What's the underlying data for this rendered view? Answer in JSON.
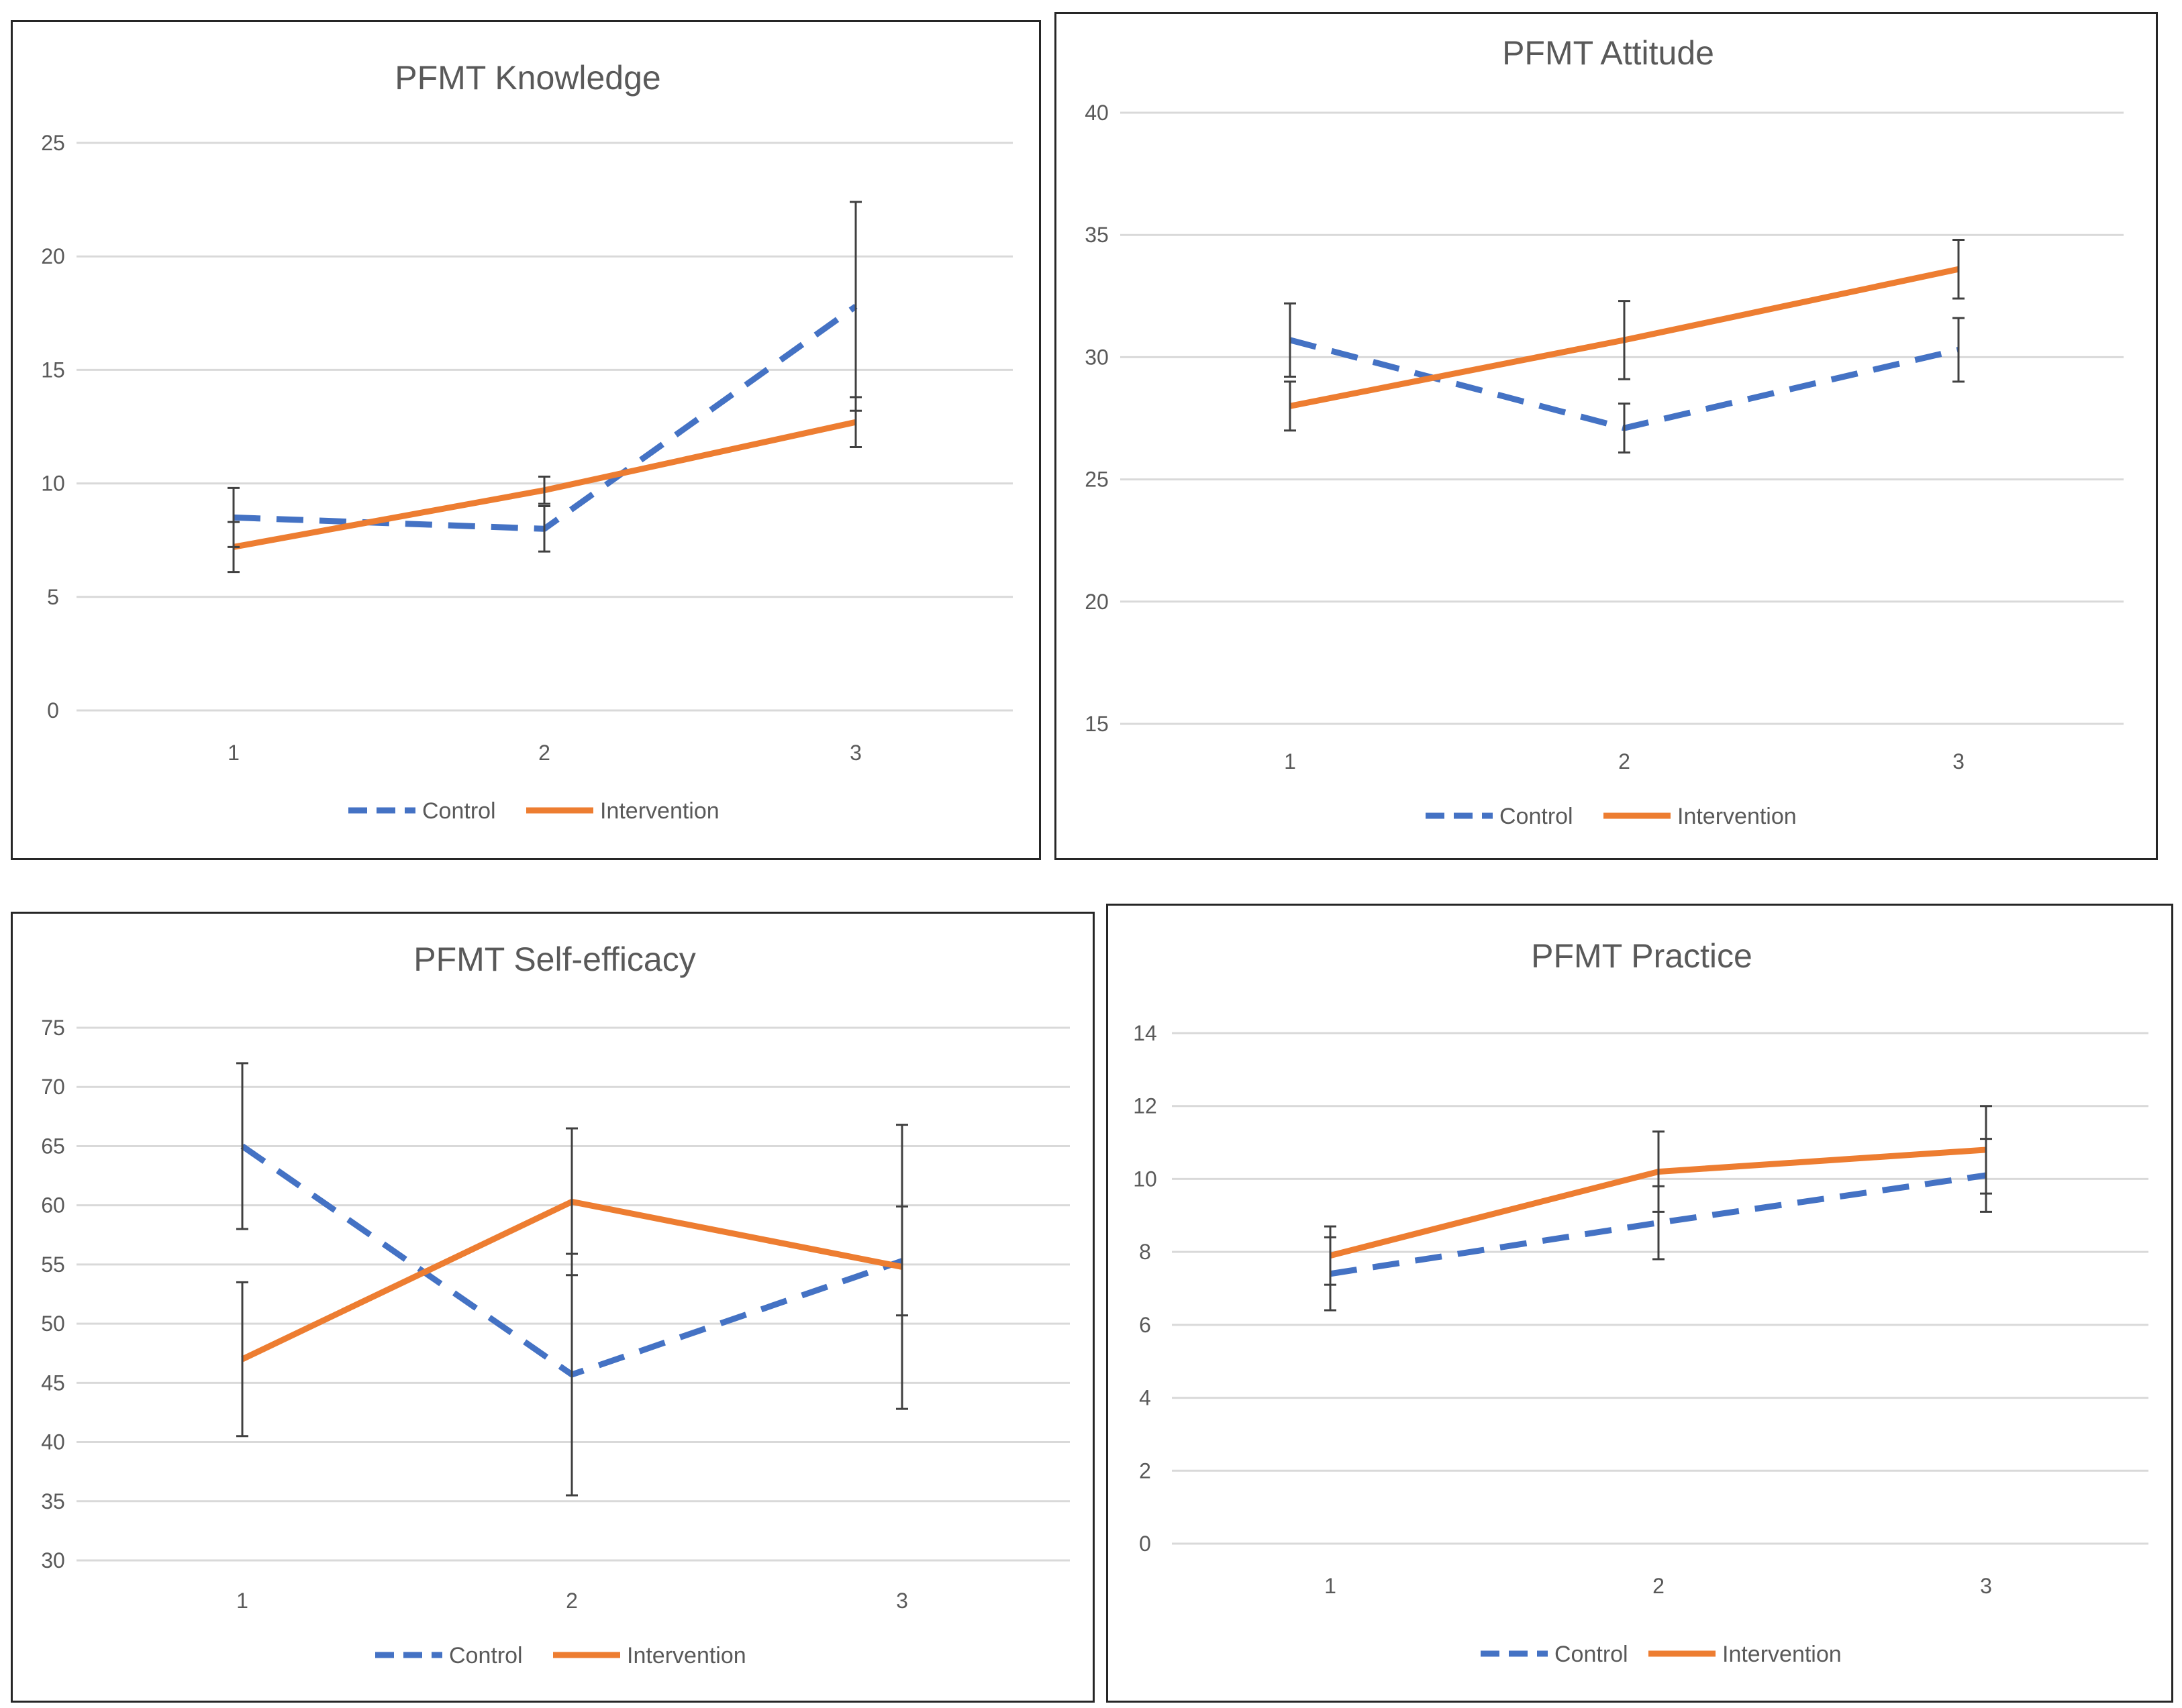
{
  "colors": {
    "control": "#4472C4",
    "intervention": "#ED7D31",
    "grid": "#D9D9D9",
    "errorbar": "#404040",
    "text": "#595959"
  },
  "legend": {
    "control_label": "Control",
    "intervention_label": "Intervention"
  },
  "chart_data": [
    {
      "type": "line",
      "title": "PFMT Knowledge",
      "categories": [
        "1",
        "2",
        "3"
      ],
      "ylim": [
        0,
        25
      ],
      "yticks": [
        0,
        5,
        10,
        15,
        20,
        25
      ],
      "series": [
        {
          "name": "Control",
          "values": [
            8.5,
            8.0,
            17.8
          ],
          "error": [
            1.3,
            1.0,
            4.6
          ]
        },
        {
          "name": "Intervention",
          "values": [
            7.2,
            9.7,
            12.7
          ],
          "error": [
            1.1,
            0.6,
            1.1
          ]
        }
      ]
    },
    {
      "type": "line",
      "title": "PFMT Attitude",
      "categories": [
        "1",
        "2",
        "3"
      ],
      "ylim": [
        15,
        40
      ],
      "yticks": [
        15,
        20,
        25,
        30,
        35,
        40
      ],
      "series": [
        {
          "name": "Control",
          "values": [
            30.7,
            27.1,
            30.3
          ],
          "error": [
            1.5,
            1.0,
            1.3
          ]
        },
        {
          "name": "Intervention",
          "values": [
            28.0,
            30.7,
            33.6
          ],
          "error": [
            1.0,
            1.6,
            1.2
          ]
        }
      ]
    },
    {
      "type": "line",
      "title": "PFMT Self-efficacy",
      "categories": [
        "1",
        "2",
        "3"
      ],
      "ylim": [
        30,
        75
      ],
      "yticks": [
        30,
        35,
        40,
        45,
        50,
        55,
        60,
        65,
        70,
        75
      ],
      "series": [
        {
          "name": "Control",
          "values": [
            65.0,
            45.7,
            55.3
          ],
          "error": [
            7.0,
            10.2,
            4.6
          ]
        },
        {
          "name": "Intervention",
          "values": [
            47.0,
            60.3,
            54.8
          ],
          "error": [
            6.5,
            6.2,
            12.0
          ]
        }
      ]
    },
    {
      "type": "line",
      "title": "PFMT Practice",
      "categories": [
        "1",
        "2",
        "3"
      ],
      "ylim": [
        0,
        14
      ],
      "yticks": [
        0,
        2,
        4,
        6,
        8,
        10,
        12,
        14
      ],
      "series": [
        {
          "name": "Control",
          "values": [
            7.4,
            8.8,
            10.1
          ],
          "error": [
            1.0,
            1.0,
            1.0
          ]
        },
        {
          "name": "Intervention",
          "values": [
            7.9,
            10.2,
            10.8
          ],
          "error": [
            0.8,
            1.1,
            1.2
          ]
        }
      ]
    }
  ]
}
